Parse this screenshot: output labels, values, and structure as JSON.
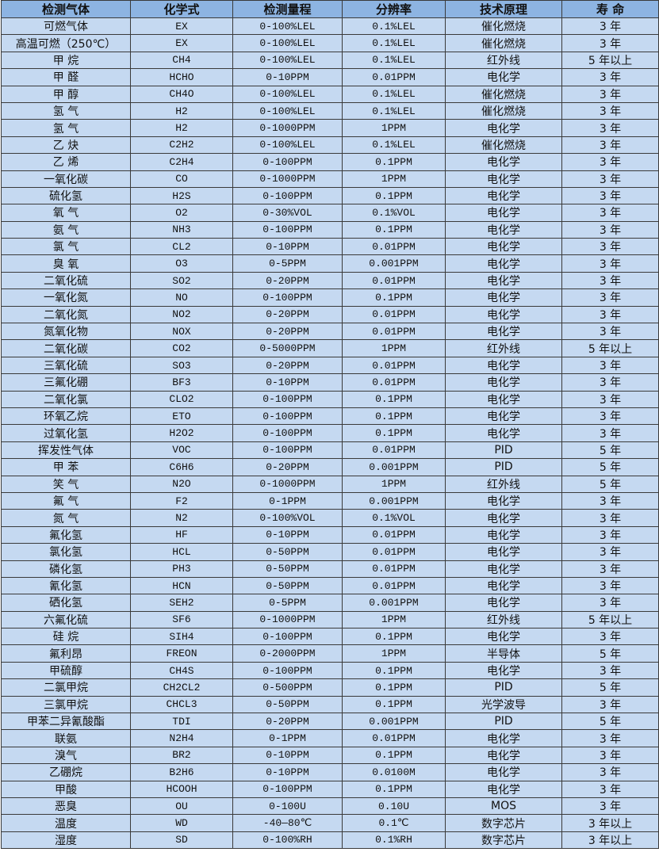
{
  "headers": [
    "检测气体",
    "化学式",
    "检测量程",
    "分辨率",
    "技术原理",
    "寿 命"
  ],
  "colors": {
    "header_bg": "#8db4e2",
    "row_bg": "#c5d9f1",
    "border": "#3a3a3a"
  },
  "rows": [
    [
      "可燃气体",
      "EX",
      "0-100%LEL",
      "0.1%LEL",
      "催化燃烧",
      "3 年"
    ],
    [
      "高温可燃（250℃）",
      "EX",
      "0-100%LEL",
      "0.1%LEL",
      "催化燃烧",
      "3 年"
    ],
    [
      "甲 烷",
      "CH4",
      "0-100%LEL",
      "0.1%LEL",
      "红外线",
      "5 年以上"
    ],
    [
      "甲 醛",
      "HCHO",
      "0-10PPM",
      "0.01PPM",
      "电化学",
      "3 年"
    ],
    [
      "甲 醇",
      "CH4O",
      "0-100%LEL",
      "0.1%LEL",
      "催化燃烧",
      "3 年"
    ],
    [
      "氢 气",
      "H2",
      "0-100%LEL",
      "0.1%LEL",
      "催化燃烧",
      "3 年"
    ],
    [
      "氢 气",
      "H2",
      "0-1000PPM",
      "1PPM",
      "电化学",
      "3 年"
    ],
    [
      "乙 炔",
      "C2H2",
      "0-100%LEL",
      "0.1%LEL",
      "催化燃烧",
      "3 年"
    ],
    [
      "乙 烯",
      "C2H4",
      "0-100PPM",
      "0.1PPM",
      "电化学",
      "3 年"
    ],
    [
      "一氧化碳",
      "CO",
      "0-1000PPM",
      "1PPM",
      "电化学",
      "3 年"
    ],
    [
      "硫化氢",
      "H2S",
      "0-100PPM",
      "0.1PPM",
      "电化学",
      "3 年"
    ],
    [
      "氧 气",
      "O2",
      "0-30%VOL",
      "0.1%VOL",
      "电化学",
      "3 年"
    ],
    [
      "氨 气",
      "NH3",
      "0-100PPM",
      "0.1PPM",
      "电化学",
      "3 年"
    ],
    [
      "氯 气",
      "CL2",
      "0-10PPM",
      "0.01PPM",
      "电化学",
      "3 年"
    ],
    [
      "臭 氧",
      "O3",
      "0-5PPM",
      "0.001PPM",
      "电化学",
      "3 年"
    ],
    [
      "二氧化硫",
      "SO2",
      "0-20PPM",
      "0.01PPM",
      "电化学",
      "3 年"
    ],
    [
      "一氧化氮",
      "NO",
      "0-100PPM",
      "0.1PPM",
      "电化学",
      "3 年"
    ],
    [
      "二氧化氮",
      "NO2",
      "0-20PPM",
      "0.01PPM",
      "电化学",
      "3 年"
    ],
    [
      "氮氧化物",
      "NOX",
      "0-20PPM",
      "0.01PPM",
      "电化学",
      "3 年"
    ],
    [
      "二氧化碳",
      "CO2",
      "0-5000PPM",
      "1PPM",
      "红外线",
      "5 年以上"
    ],
    [
      "三氧化硫",
      "SO3",
      "0-20PPM",
      "0.01PPM",
      "电化学",
      "3 年"
    ],
    [
      "三氟化硼",
      "BF3",
      "0-10PPM",
      "0.01PPM",
      "电化学",
      "3 年"
    ],
    [
      "二氧化氯",
      "CLO2",
      "0-100PPM",
      "0.1PPM",
      "电化学",
      "3 年"
    ],
    [
      "环氧乙烷",
      "ETO",
      "0-100PPM",
      "0.1PPM",
      "电化学",
      "3 年"
    ],
    [
      "过氧化氢",
      "H2O2",
      "0-100PPM",
      "0.1PPM",
      "电化学",
      "3 年"
    ],
    [
      "挥发性气体",
      "VOC",
      "0-100PPM",
      "0.01PPM",
      "PID",
      "5 年"
    ],
    [
      "甲 苯",
      "C6H6",
      "0-20PPM",
      "0.001PPM",
      "PID",
      "5 年"
    ],
    [
      "笑 气",
      "N2O",
      "0-1000PPM",
      "1PPM",
      "红外线",
      "5 年"
    ],
    [
      "氟 气",
      "F2",
      "0-1PPM",
      "0.001PPM",
      "电化学",
      "3 年"
    ],
    [
      "氮 气",
      "N2",
      "0-100%VOL",
      "0.1%VOL",
      "电化学",
      "3 年"
    ],
    [
      "氟化氢",
      "HF",
      "0-10PPM",
      "0.01PPM",
      "电化学",
      "3 年"
    ],
    [
      "氯化氢",
      "HCL",
      "0-50PPM",
      "0.01PPM",
      "电化学",
      "3 年"
    ],
    [
      "磷化氢",
      "PH3",
      "0-50PPM",
      "0.01PPM",
      "电化学",
      "3 年"
    ],
    [
      "氰化氢",
      "HCN",
      "0-50PPM",
      "0.01PPM",
      "电化学",
      "3 年"
    ],
    [
      "硒化氢",
      "SEH2",
      "0-5PPM",
      "0.001PPM",
      "电化学",
      "3 年"
    ],
    [
      "六氟化硫",
      "SF6",
      "0-1000PPM",
      "1PPM",
      "红外线",
      "5 年以上"
    ],
    [
      "硅 烷",
      "SIH4",
      "0-100PPM",
      "0.1PPM",
      "电化学",
      "3 年"
    ],
    [
      "氟利昂",
      "FREON",
      "0-2000PPM",
      "1PPM",
      "半导体",
      "5 年"
    ],
    [
      "甲硫醇",
      "CH4S",
      "0-100PPM",
      "0.1PPM",
      "电化学",
      "3 年"
    ],
    [
      "二氯甲烷",
      "CH2CL2",
      "0-500PPM",
      "0.1PPM",
      "PID",
      "5 年"
    ],
    [
      "三氯甲烷",
      "CHCL3",
      "0-50PPM",
      "0.1PPM",
      "光学波导",
      "3 年"
    ],
    [
      "甲苯二异氰酸酯",
      "TDI",
      "0-20PPM",
      "0.001PPM",
      "PID",
      "5 年"
    ],
    [
      "联氨",
      "N2H4",
      "0-1PPM",
      "0.01PPM",
      "电化学",
      "3 年"
    ],
    [
      "溴气",
      "BR2",
      "0-10PPM",
      "0.1PPM",
      "电化学",
      "3 年"
    ],
    [
      "乙硼烷",
      "B2H6",
      "0-10PPM",
      "0.0100M",
      "电化学",
      "3 年"
    ],
    [
      "甲酸",
      "HCOOH",
      "0-100PPM",
      "0.1PPM",
      "电化学",
      "3 年"
    ],
    [
      "恶臭",
      "OU",
      "0-100U",
      "0.10U",
      "MOS",
      "3 年"
    ],
    [
      "温度",
      "WD",
      "-40—80℃",
      "0.1℃",
      "数字芯片",
      "3 年以上"
    ],
    [
      "湿度",
      "SD",
      "0-100%RH",
      "0.1%RH",
      "数字芯片",
      "3 年以上"
    ]
  ]
}
